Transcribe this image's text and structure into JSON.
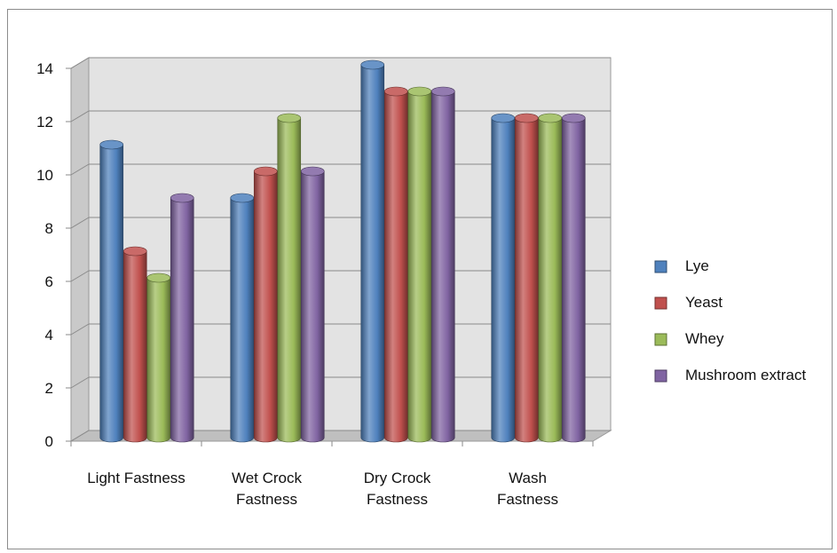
{
  "chart_data": {
    "type": "bar",
    "categories": [
      [
        "Light Fastness"
      ],
      [
        "Wet Crock",
        "Fastness"
      ],
      [
        "Dry Crock",
        "Fastness"
      ],
      [
        "Wash",
        "Fastness"
      ]
    ],
    "series": [
      {
        "name": "Lye",
        "color": "#4f81bd",
        "values": [
          11,
          9,
          14,
          12
        ]
      },
      {
        "name": "Yeast",
        "color": "#c0504d",
        "values": [
          7,
          10,
          13,
          12
        ]
      },
      {
        "name": "Whey",
        "color": "#9bbb59",
        "values": [
          6,
          12,
          13,
          12
        ]
      },
      {
        "name": "Mushroom extract",
        "color": "#8064a2",
        "values": [
          9,
          10,
          13,
          12
        ]
      }
    ],
    "yticks": [
      0,
      2,
      4,
      6,
      8,
      10,
      12,
      14
    ],
    "ylim": [
      0,
      14
    ],
    "grid": true,
    "legend_position": "right",
    "style": "3d-cylinder"
  }
}
